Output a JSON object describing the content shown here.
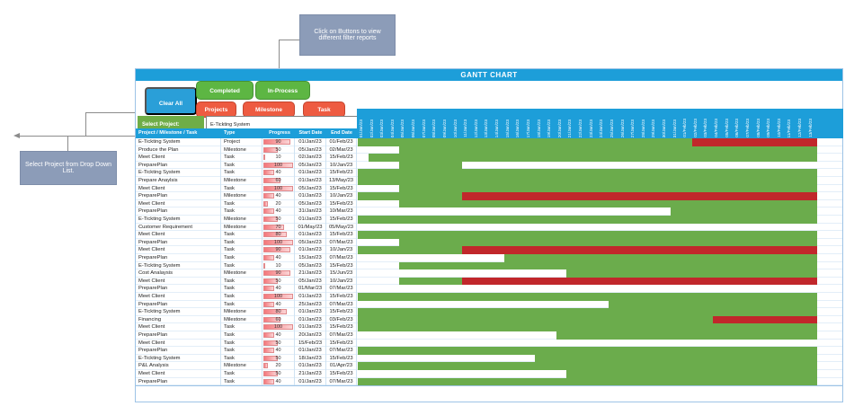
{
  "title": "GANTT CHART",
  "colors": {
    "blue": "#1d9ed9",
    "btnblue": "#2a9fd8",
    "greenbtn": "#5db643",
    "redbtn": "#ee5b41",
    "labelgreen": "#6fad47",
    "bargreen": "#6bac4c",
    "barred": "#c1272b",
    "callout": "#8c9cb8"
  },
  "annotations": {
    "buttons_note": "Click on Buttons to view different filter reports",
    "dropdown_note": "Select Project from Drop Down List."
  },
  "filters": {
    "clear": "Clear All Filter",
    "completed": "Completed",
    "in_process": "In-Process",
    "projects": "Projects",
    "milestone": "Milestone",
    "task": "Task"
  },
  "select_project": {
    "label": "Select Project:",
    "value": "E-Tickting System",
    "arrow_icon": "▼"
  },
  "columns": [
    "Project / Milestone / Task",
    "Type",
    "Progress",
    "Start Date",
    "End Date"
  ],
  "timeline": {
    "dates": [
      "01/Jan/23",
      "02/Jan/23",
      "03/Jan/23",
      "04/Jan/23",
      "05/Jan/23",
      "06/Jan/23",
      "07/Jan/23",
      "08/Jan/23",
      "09/Jan/23",
      "10/Jan/23",
      "11/Jan/23",
      "12/Jan/23",
      "13/Jan/23",
      "14/Jan/23",
      "15/Jan/23",
      "16/Jan/23",
      "17/Jan/23",
      "18/Jan/23",
      "19/Jan/23",
      "20/Jan/23",
      "21/Jan/23",
      "22/Jan/23",
      "23/Jan/23",
      "24/Jan/23",
      "25/Jan/23",
      "26/Jan/23",
      "27/Jan/23",
      "28/Jan/23",
      "29/Jan/23",
      "30/Jan/23",
      "31/Jan/23",
      "01/Feb/23",
      "02/Feb/23",
      "03/Feb/23",
      "04/Feb/23",
      "05/Feb/23",
      "06/Feb/23",
      "07/Feb/23",
      "08/Feb/23",
      "09/Feb/23",
      "10/Feb/23",
      "11/Feb/23",
      "12/Feb/23",
      "13/Feb/23"
    ]
  },
  "rows": [
    {
      "name": "E-Tickting System",
      "type": "Project",
      "progress": 90,
      "start": "01/Jan/23",
      "end": "01/Feb/23",
      "bar": [
        0,
        32,
        12
      ]
    },
    {
      "name": "Produce the Plan",
      "type": "Milestone",
      "progress": 50,
      "start": "05/Jan/23",
      "end": "02/Mar/23",
      "bar": [
        4,
        40,
        0
      ]
    },
    {
      "name": "Meet Client",
      "type": "Task",
      "progress": 10,
      "start": "02/Jan/23",
      "end": "15/Feb/23",
      "bar": [
        1,
        43,
        0
      ]
    },
    {
      "name": "PreparePlan",
      "type": "Task",
      "progress": 100,
      "start": "05/Jan/23",
      "end": "10/Jan/23",
      "bar": [
        4,
        6,
        0
      ]
    },
    {
      "name": "E-Tickting System",
      "type": "Task",
      "progress": 40,
      "start": "01/Jan/23",
      "end": "15/Feb/23",
      "bar": [
        0,
        44,
        0
      ]
    },
    {
      "name": "Prepare Anaylsis",
      "type": "Milestone",
      "progress": 60,
      "start": "01/Jan/23",
      "end": "13/May/23",
      "bar": [
        0,
        44,
        0
      ]
    },
    {
      "name": "Meet Client",
      "type": "Task",
      "progress": 100,
      "start": "05/Jan/23",
      "end": "15/Feb/23",
      "bar": [
        4,
        40,
        0
      ]
    },
    {
      "name": "PreparePlan",
      "type": "Milestone",
      "progress": 40,
      "start": "01/Jan/23",
      "end": "10/Jan/23",
      "bar": [
        0,
        10,
        34
      ]
    },
    {
      "name": "Meet Client",
      "type": "Task",
      "progress": 20,
      "start": "05/Jan/23",
      "end": "15/Feb/23",
      "bar": [
        4,
        40,
        0
      ]
    },
    {
      "name": "PreparePlan",
      "type": "Task",
      "progress": 40,
      "start": "31/Jan/23",
      "end": "10/Mar/23",
      "bar": [
        30,
        14,
        0
      ]
    },
    {
      "name": "E-Tickting System",
      "type": "Milestone",
      "progress": 50,
      "start": "01/Jan/23",
      "end": "15/Feb/23",
      "bar": [
        0,
        44,
        0
      ]
    },
    {
      "name": "Customer Requirement",
      "type": "Milestone",
      "progress": 70,
      "start": "01/May/23",
      "end": "05/May/23",
      "bar": null
    },
    {
      "name": "Meet Client",
      "type": "Task",
      "progress": 80,
      "start": "01/Jan/23",
      "end": "15/Feb/23",
      "bar": [
        0,
        44,
        0
      ]
    },
    {
      "name": "PreparePlan",
      "type": "Task",
      "progress": 100,
      "start": "05/Jan/23",
      "end": "07/Mar/23",
      "bar": [
        4,
        40,
        0
      ]
    },
    {
      "name": "Meet Client",
      "type": "Task",
      "progress": 90,
      "start": "01/Jan/23",
      "end": "10/Jan/23",
      "bar": [
        0,
        10,
        34
      ]
    },
    {
      "name": "PreparePlan",
      "type": "Task",
      "progress": 40,
      "start": "15/Jan/23",
      "end": "07/Mar/23",
      "bar": [
        14,
        30,
        0
      ]
    },
    {
      "name": "E-Tickting System",
      "type": "Task",
      "progress": 10,
      "start": "05/Jan/23",
      "end": "15/Feb/23",
      "bar": [
        4,
        40,
        0
      ]
    },
    {
      "name": "Cost Analaysis",
      "type": "Milestone",
      "progress": 90,
      "start": "21/Jan/23",
      "end": "15/Jun/23",
      "bar": [
        20,
        24,
        0
      ]
    },
    {
      "name": "Meet Client",
      "type": "Task",
      "progress": 50,
      "start": "05/Jan/23",
      "end": "10/Jan/23",
      "bar": [
        4,
        6,
        34
      ]
    },
    {
      "name": "PreparePlan",
      "type": "Task",
      "progress": 40,
      "start": "01/Mar/23",
      "end": "07/Mar/23",
      "bar": null
    },
    {
      "name": "Meet Client",
      "type": "Task",
      "progress": 100,
      "start": "01/Jan/23",
      "end": "15/Feb/23",
      "bar": [
        0,
        44,
        0
      ]
    },
    {
      "name": "PreparePlan",
      "type": "Task",
      "progress": 40,
      "start": "25/Jan/23",
      "end": "07/Mar/23",
      "bar": [
        24,
        20,
        0
      ]
    },
    {
      "name": "E-Tickting System",
      "type": "Milestone",
      "progress": 80,
      "start": "01/Jan/23",
      "end": "15/Feb/23",
      "bar": [
        0,
        44,
        0
      ]
    },
    {
      "name": "Financing",
      "type": "Milestone",
      "progress": 60,
      "start": "01/Jan/23",
      "end": "03/Feb/23",
      "bar": [
        0,
        34,
        10
      ]
    },
    {
      "name": "Meet Client",
      "type": "Task",
      "progress": 100,
      "start": "01/Jan/23",
      "end": "15/Feb/23",
      "bar": [
        0,
        44,
        0
      ]
    },
    {
      "name": "PreparePlan",
      "type": "Task",
      "progress": 40,
      "start": "20/Jan/23",
      "end": "07/Mar/23",
      "bar": [
        19,
        25,
        0
      ]
    },
    {
      "name": "Meet Client",
      "type": "Task",
      "progress": 50,
      "start": "15/Feb/23",
      "end": "15/Feb/23",
      "bar": null
    },
    {
      "name": "PreparePlan",
      "type": "Task",
      "progress": 40,
      "start": "01/Jan/23",
      "end": "07/Mar/23",
      "bar": [
        0,
        44,
        0
      ]
    },
    {
      "name": "E-Tickting System",
      "type": "Task",
      "progress": 50,
      "start": "18/Jan/23",
      "end": "15/Feb/23",
      "bar": [
        17,
        27,
        0
      ]
    },
    {
      "name": "P&L Analysis",
      "type": "Milestone",
      "progress": 20,
      "start": "01/Jan/23",
      "end": "01/Apr/23",
      "bar": [
        0,
        44,
        0
      ]
    },
    {
      "name": "Meet Client",
      "type": "Task",
      "progress": 50,
      "start": "21/Jan/23",
      "end": "15/Feb/23",
      "bar": [
        20,
        24,
        0
      ]
    },
    {
      "name": "PreparePlan",
      "type": "Task",
      "progress": 40,
      "start": "01/Jan/23",
      "end": "07/Mar/23",
      "bar": [
        0,
        44,
        0
      ]
    }
  ]
}
